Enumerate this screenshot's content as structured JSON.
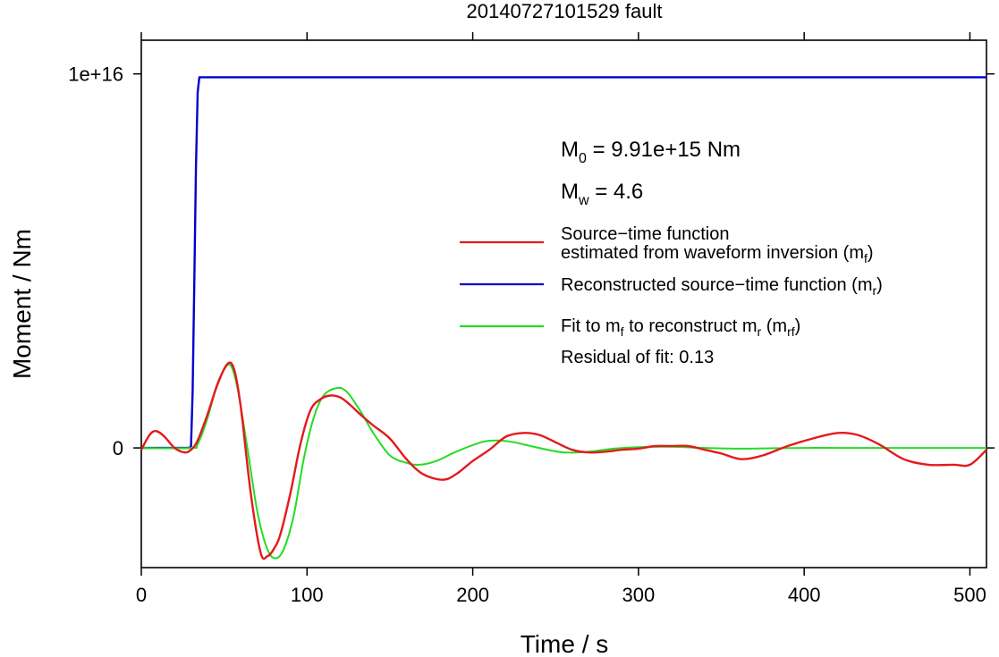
{
  "chart_data": {
    "type": "line",
    "title": "20140727101529 fault",
    "xlabel": "Time / s",
    "ylabel": "Moment / Nm",
    "xlim": [
      0,
      510
    ],
    "ylim": [
      -3200000000000000.0,
      1.09e+16
    ],
    "x_ticks": [
      0,
      100,
      200,
      300,
      400,
      500
    ],
    "x_tick_labels": [
      "0",
      "100",
      "200",
      "300",
      "400",
      "500"
    ],
    "y_ticks": [
      0,
      1e+16
    ],
    "y_tick_labels": [
      "0",
      "1e+16"
    ],
    "grid": false,
    "legend_position": "right",
    "annotations": {
      "m0_sym": "M",
      "m0_sub": "0",
      "m0_rest": " = 9.91e+15 Nm",
      "mw_sym": "M",
      "mw_sub": "w",
      "mw_rest": " = 4.6",
      "residual": "Residual of fit: 0.13"
    },
    "legend": [
      {
        "color": "#e31a1c",
        "line1": "Source−time function",
        "line2_pre": "estimated from waveform inversion (m",
        "line2_sub": "f",
        "line2_post": ")"
      },
      {
        "color": "#0000cc",
        "line1_pre": "Reconstructed source−time function (m",
        "line1_sub": "r",
        "line1_post": ")"
      },
      {
        "color": "#22dd22",
        "p1": "Fit to m",
        "s1": "f",
        "p2": " to reconstruct m",
        "s2": "r",
        "p3": " (m",
        "s3": "rf",
        "p4": ")"
      }
    ],
    "series": [
      {
        "name": "Source−time function estimated from waveform inversion (mf)",
        "color": "#e31a1c",
        "x": [
          0,
          5,
          9,
          14,
          20,
          26,
          30,
          34,
          40,
          46,
          52,
          56,
          60,
          66,
          72,
          76,
          80,
          84,
          90,
          96,
          102,
          108,
          114,
          120,
          126,
          132,
          140,
          150,
          160,
          170,
          182,
          190,
          200,
          210,
          220,
          230,
          240,
          250,
          260,
          270,
          280,
          290,
          300,
          310,
          320,
          330,
          340,
          350,
          362,
          375,
          390,
          405,
          420,
          432,
          445,
          460,
          475,
          490,
          500,
          510
        ],
        "y": [
          -50000000000000.0,
          350000000000000.0,
          450000000000000.0,
          300000000000000.0,
          0.0,
          -120000000000000.0,
          -50000000000000.0,
          200000000000000.0,
          900000000000000.0,
          1700000000000000.0,
          2250000000000000.0,
          2100000000000000.0,
          1100000000000000.0,
          -1200000000000000.0,
          -2800000000000000.0,
          -2900000000000000.0,
          -2700000000000000.0,
          -2300000000000000.0,
          -1200000000000000.0,
          100000000000000.0,
          1000000000000000.0,
          1300000000000000.0,
          1400000000000000.0,
          1350000000000000.0,
          1150000000000000.0,
          900000000000000.0,
          600000000000000.0,
          250000000000000.0,
          -300000000000000.0,
          -700000000000000.0,
          -850000000000000.0,
          -700000000000000.0,
          -350000000000000.0,
          -50000000000000.0,
          300000000000000.0,
          400000000000000.0,
          350000000000000.0,
          150000000000000.0,
          -50000000000000.0,
          -120000000000000.0,
          -100000000000000.0,
          -50000000000000.0,
          -20000000000000.0,
          50000000000000.0,
          50000000000000.0,
          50000000000000.0,
          -50000000000000.0,
          -150000000000000.0,
          -300000000000000.0,
          -200000000000000.0,
          50000000000000.0,
          250000000000000.0,
          400000000000000.0,
          350000000000000.0,
          100000000000000.0,
          -300000000000000.0,
          -450000000000000.0,
          -450000000000000.0,
          -450000000000000.0,
          -50000000000000.0
        ]
      },
      {
        "name": "Reconstructed source−time function (mr)",
        "color": "#0000cc",
        "x": [
          0,
          29,
          30,
          31,
          32,
          33,
          34,
          35,
          510
        ],
        "y": [
          0,
          0,
          50000000000000.0,
          1500000000000000.0,
          4500000000000000.0,
          7500000000000000.0,
          9500000000000000.0,
          9910000000000000.0,
          9910000000000000.0
        ]
      },
      {
        "name": "Fit to mf to reconstruct mr (mrf)",
        "color": "#22dd22",
        "x": [
          0,
          30,
          34,
          40,
          45,
          50,
          54,
          58,
          64,
          70,
          76,
          81,
          86,
          92,
          98,
          104,
          110,
          118,
          124,
          132,
          140,
          150,
          160,
          168,
          178,
          190,
          205,
          215,
          225,
          240,
          255,
          270,
          285,
          300,
          320,
          340,
          360,
          380,
          400,
          420,
          450,
          480,
          510
        ],
        "y": [
          0,
          0,
          100000000000000.0,
          800000000000000.0,
          1600000000000000.0,
          2100000000000000.0,
          2200000000000000.0,
          1600000000000000.0,
          0.0,
          -1700000000000000.0,
          -2700000000000000.0,
          -2950000000000000.0,
          -2700000000000000.0,
          -1800000000000000.0,
          -300000000000000.0,
          800000000000000.0,
          1400000000000000.0,
          1600000000000000.0,
          1500000000000000.0,
          1000000000000000.0,
          400000000000000.0,
          -200000000000000.0,
          -400000000000000.0,
          -450000000000000.0,
          -350000000000000.0,
          -100000000000000.0,
          150000000000000.0,
          200000000000000.0,
          150000000000000.0,
          0.0,
          -120000000000000.0,
          -100000000000000.0,
          -20000000000000.0,
          20000000000000.0,
          30000000000000.0,
          0.0,
          -20000000000000.0,
          -10000000000000.0,
          0.0,
          0.0,
          0.0,
          0.0,
          0.0
        ]
      }
    ]
  }
}
